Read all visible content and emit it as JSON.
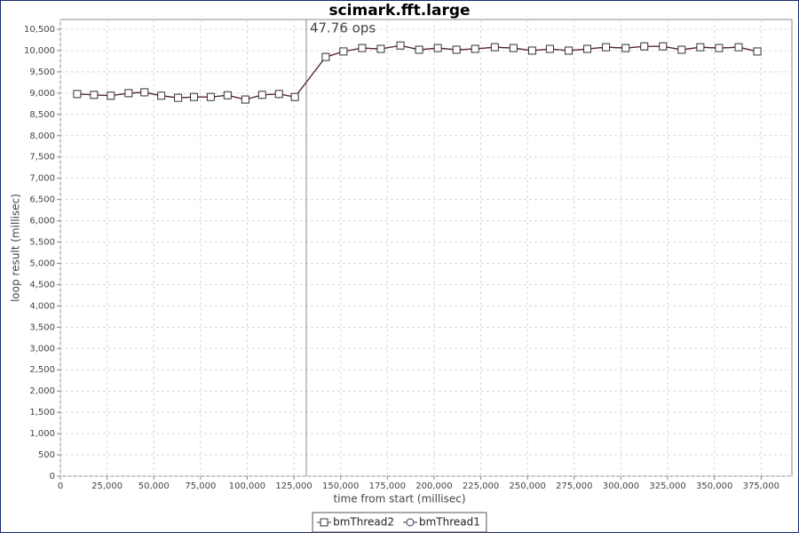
{
  "chart_data": {
    "type": "line",
    "title": "scimark.fft.large",
    "x_label": "time from start (millisec)",
    "y_label": "loop result (millisec)",
    "x": [
      9000,
      18000,
      27000,
      36500,
      45000,
      54000,
      63000,
      71500,
      80500,
      89500,
      99000,
      108000,
      117000,
      125500,
      142000,
      151500,
      161500,
      171500,
      182000,
      192000,
      202000,
      212000,
      222000,
      232500,
      242500,
      252500,
      262000,
      272000,
      282000,
      292000,
      302500,
      312500,
      322500,
      332500,
      342500,
      352500,
      363000,
      373000
    ],
    "series": [
      {
        "name": "bmThread1",
        "color": "#33335e",
        "marker": "circle",
        "values": [
          8980,
          8960,
          8940,
          9000,
          9020,
          8940,
          8890,
          8910,
          8910,
          8950,
          8850,
          8960,
          8980,
          8910,
          9850,
          9980,
          10060,
          10040,
          10120,
          10020,
          10060,
          10020,
          10040,
          10080,
          10060,
          10000,
          10040,
          10000,
          10040,
          10080,
          10060,
          10100,
          10100,
          10020,
          10080,
          10060,
          10080,
          9980
        ]
      },
      {
        "name": "bmThread2",
        "color": "#5a2232",
        "marker": "square",
        "values": [
          8980,
          8960,
          8940,
          9000,
          9020,
          8940,
          8890,
          8910,
          8910,
          8950,
          8850,
          8960,
          8980,
          8910,
          9850,
          9980,
          10060,
          10040,
          10120,
          10020,
          10060,
          10020,
          10040,
          10080,
          10060,
          10000,
          10040,
          10000,
          10040,
          10080,
          10060,
          10100,
          10100,
          10020,
          10080,
          10060,
          10080,
          9980
        ]
      }
    ],
    "xlim": [
      0,
      391500
    ],
    "ylim": [
      0,
      10730
    ],
    "xticks": [
      0,
      {
        "value": 25000,
        "label": "25,000"
      },
      {
        "value": 50000,
        "label": "50,000"
      },
      {
        "value": 75000,
        "label": "75,000"
      },
      {
        "value": 100000,
        "label": "100,000"
      },
      {
        "value": 125000,
        "label": "125,000"
      },
      {
        "value": 150000,
        "label": "150,000"
      },
      {
        "value": 175000,
        "label": "175,000"
      },
      {
        "value": 200000,
        "label": "200,000"
      },
      {
        "value": 225000,
        "label": "225,000"
      },
      {
        "value": 250000,
        "label": "250,000"
      },
      {
        "value": 275000,
        "label": "275,000"
      },
      {
        "value": 300000,
        "label": "300,000"
      },
      {
        "value": 325000,
        "label": "325,000"
      },
      {
        "value": 350000,
        "label": "350,000"
      },
      {
        "value": 375000,
        "label": "375,000"
      }
    ],
    "yticks": [
      0,
      500,
      {
        "value": 1000,
        "label": "1,000"
      },
      {
        "value": 1500,
        "label": "1,500"
      },
      {
        "value": 2000,
        "label": "2,000"
      },
      {
        "value": 2500,
        "label": "2,500"
      },
      {
        "value": 3000,
        "label": "3,000"
      },
      {
        "value": 3500,
        "label": "3,500"
      },
      {
        "value": 4000,
        "label": "4,000"
      },
      {
        "value": 4500,
        "label": "4,500"
      },
      {
        "value": 5000,
        "label": "5,000"
      },
      {
        "value": 5500,
        "label": "5,500"
      },
      {
        "value": 6000,
        "label": "6,000"
      },
      {
        "value": 6500,
        "label": "6,500"
      },
      {
        "value": 7000,
        "label": "7,000"
      },
      {
        "value": 7500,
        "label": "7,500"
      },
      {
        "value": 8000,
        "label": "8,000"
      },
      {
        "value": 8500,
        "label": "8,500"
      },
      {
        "value": 9000,
        "label": "9,000"
      },
      {
        "value": 9500,
        "label": "9,500"
      },
      {
        "value": 10000,
        "label": "10,000"
      },
      {
        "value": 10500,
        "label": "10,500"
      }
    ],
    "marker_line": {
      "value": 131600,
      "label": "47.76 ops"
    },
    "grid": true,
    "legend": "bottom"
  }
}
